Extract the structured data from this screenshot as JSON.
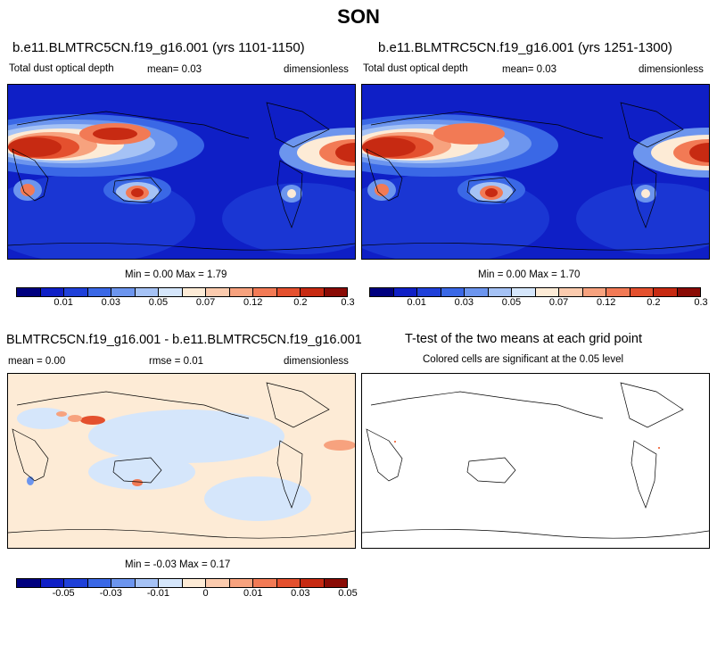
{
  "title": "SON",
  "panels": {
    "top_left": {
      "title": "b.e11.BLMTRC5CN.f19_g16.001 (yrs 1101-1150)",
      "left_label": "Total dust optical depth",
      "mean": "mean=   0.03",
      "units": "dimensionless",
      "minmax": "Min =   0.00 Max =    1.79"
    },
    "top_right": {
      "title": "b.e11.BLMTRC5CN.f19_g16.001 (yrs 1251-1300)",
      "left_label": "Total dust optical depth",
      "mean": "mean=   0.03",
      "units": "dimensionless",
      "minmax": "Min =   0.00 Max =    1.70"
    },
    "diff": {
      "title": "BLMTRC5CN.f19_g16.001 - b.e11.BLMTRC5CN.f19_g16.001",
      "mean": "mean =   0.00",
      "rmse": "rmse =   0.01",
      "units": "dimensionless",
      "minmax": "Min = -0.03 Max =   0.17"
    },
    "ttest": {
      "title": "T-test of the two means at each grid point",
      "subtitle": "Colored cells are significant at the 0.05 level"
    }
  },
  "colorbars": {
    "abs": {
      "colors": [
        "#00007f",
        "#0f1fc6",
        "#1f40d9",
        "#3a68e6",
        "#6c95ee",
        "#a5c2f5",
        "#d5e6fb",
        "#fdebd6",
        "#fbcbae",
        "#f7a27e",
        "#f27a55",
        "#e4502e",
        "#c72a12",
        "#8a0b05"
      ],
      "tick_labels": [
        "0.01",
        "0.03",
        "0.05",
        "0.07",
        "0.12",
        "0.2",
        "0.3"
      ]
    },
    "diff": {
      "colors": [
        "#00007f",
        "#0f1fc6",
        "#1f40d9",
        "#3a68e6",
        "#6c95ee",
        "#a5c2f5",
        "#d5e6fb",
        "#fdebd6",
        "#fbcbae",
        "#f7a27e",
        "#f27a55",
        "#e4502e",
        "#c72a12",
        "#8a0b05"
      ],
      "tick_labels": [
        "-0.05",
        "-0.03",
        "-0.01",
        "0",
        "0.01",
        "0.03",
        "0.05"
      ]
    }
  }
}
